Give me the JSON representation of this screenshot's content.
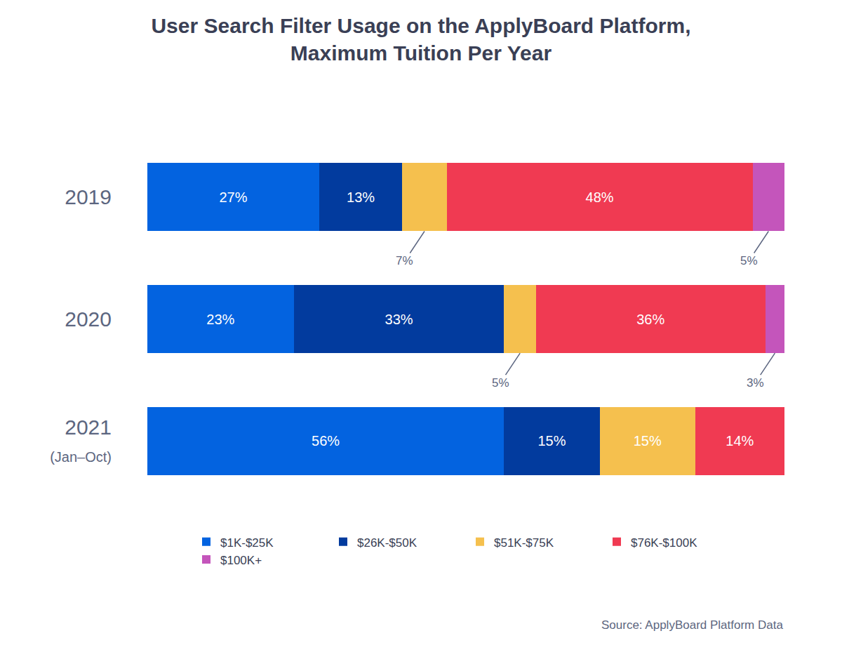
{
  "chart_data": {
    "type": "bar",
    "title": "User Search Filter Usage on the ApplyBoard Platform,\nMaximum Tuition Per Year",
    "source": "Source: ApplyBoard Platform Data",
    "orientation": "horizontal",
    "stacked": true,
    "data_labels": true,
    "tick_labels": "y",
    "grid": false,
    "legend": "bottom",
    "categories": [
      "2019",
      "2020",
      "2021\n(Jan–Oct)"
    ],
    "xlim": [
      0,
      100
    ],
    "xticks": [],
    "series": [
      {
        "name": "$1K-$25K",
        "color": "#0363e0",
        "values": [
          27,
          23,
          56
        ],
        "value_labels": [
          "27%",
          "23%",
          "56%"
        ]
      },
      {
        "name": "$26K-$50K",
        "color": "#023b9e",
        "values": [
          13,
          33,
          15
        ],
        "value_labels": [
          "13%",
          "33%",
          "15%"
        ]
      },
      {
        "name": "$51K-$75K",
        "color": "#f5c04e",
        "values": [
          7,
          5,
          15
        ],
        "value_labels": [
          "7%",
          "5%",
          "15%"
        ]
      },
      {
        "name": "$76K-$100K",
        "color": "#f03a52",
        "values": [
          48,
          36,
          14
        ],
        "value_labels": [
          "48%",
          "36%",
          "14%"
        ]
      },
      {
        "name": "$100K+",
        "color": "#c455bb",
        "values": [
          5,
          3,
          null
        ],
        "value_labels": [
          "5%",
          "3%",
          null
        ]
      }
    ]
  }
}
